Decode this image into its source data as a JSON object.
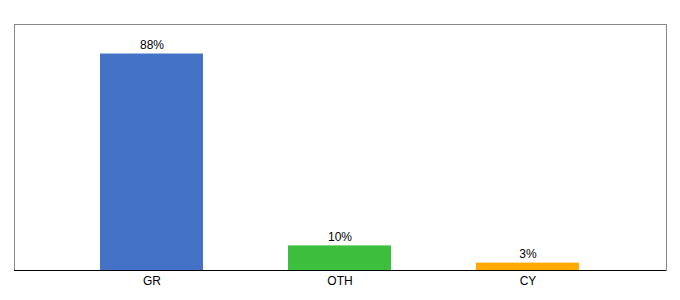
{
  "chart_data": {
    "type": "bar",
    "categories": [
      "GR",
      "OTH",
      "CY"
    ],
    "values": [
      88,
      10,
      3
    ],
    "value_labels": [
      "88%",
      "10%",
      "3%"
    ],
    "colors": [
      "#4472c4",
      "#3dbf3d",
      "#ffaa00"
    ],
    "ylim": [
      0,
      100
    ],
    "data_labels": true,
    "tick_labels": "x",
    "grid": false
  }
}
